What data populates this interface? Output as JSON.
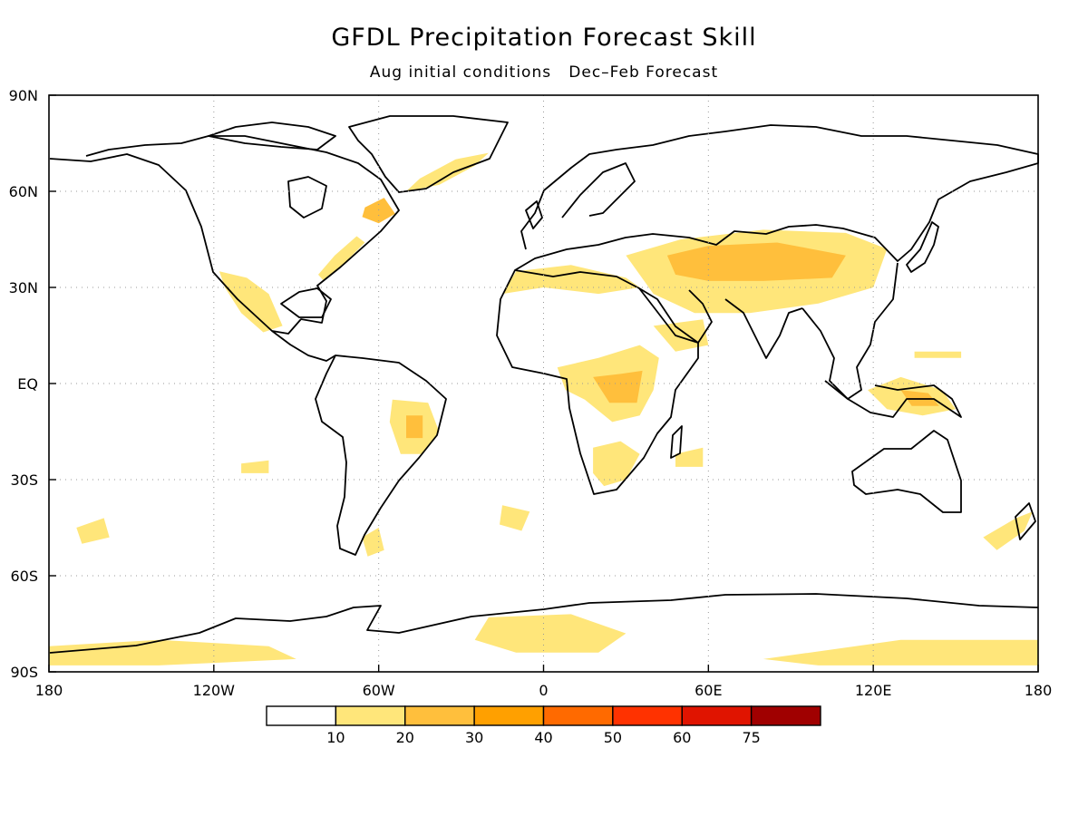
{
  "title": "GFDL Precipitation Forecast Skill",
  "subtitle": "Aug initial conditions   Dec–Feb Forecast",
  "map": {
    "projection": "equirectangular",
    "lon_range": [
      -180,
      180
    ],
    "lat_range": [
      -90,
      90
    ],
    "grid": "dotted",
    "coastline_color": "#000000",
    "lat_ticks": [
      {
        "value": 90,
        "label": "90N"
      },
      {
        "value": 60,
        "label": "60N"
      },
      {
        "value": 30,
        "label": "30N"
      },
      {
        "value": 0,
        "label": "EQ"
      },
      {
        "value": -30,
        "label": "30S"
      },
      {
        "value": -60,
        "label": "60S"
      },
      {
        "value": -90,
        "label": "90S"
      }
    ],
    "lon_ticks": [
      {
        "value": -180,
        "label": "180"
      },
      {
        "value": -120,
        "label": "120W"
      },
      {
        "value": -60,
        "label": "60W"
      },
      {
        "value": 0,
        "label": "0"
      },
      {
        "value": 60,
        "label": "60E"
      },
      {
        "value": 120,
        "label": "120E"
      },
      {
        "value": 180,
        "label": "180"
      }
    ]
  },
  "colorbar": {
    "bins": [
      {
        "color": "#ffffff"
      },
      {
        "color": "#ffe67a"
      },
      {
        "color": "#ffbf3c"
      },
      {
        "color": "#ffa000"
      },
      {
        "color": "#ff6a00"
      },
      {
        "color": "#ff3200"
      },
      {
        "color": "#e01400"
      },
      {
        "color": "#a00000"
      }
    ],
    "tick_labels": [
      "10",
      "20",
      "30",
      "40",
      "50",
      "60",
      "75"
    ]
  },
  "skill_regions": [
    {
      "name": "sahara-north-africa",
      "level": 1,
      "points": [
        [
          -10,
          35
        ],
        [
          10,
          37
        ],
        [
          30,
          33
        ],
        [
          35,
          30
        ],
        [
          20,
          28
        ],
        [
          0,
          30
        ],
        [
          -15,
          28
        ]
      ]
    },
    {
      "name": "middle-east-central-asia",
      "level": 1,
      "points": [
        [
          30,
          40
        ],
        [
          50,
          45
        ],
        [
          80,
          48
        ],
        [
          110,
          47
        ],
        [
          125,
          42
        ],
        [
          120,
          30
        ],
        [
          100,
          25
        ],
        [
          75,
          22
        ],
        [
          55,
          22
        ],
        [
          40,
          28
        ]
      ]
    },
    {
      "name": "central-asia-core",
      "level": 2,
      "points": [
        [
          45,
          40
        ],
        [
          60,
          43
        ],
        [
          85,
          44
        ],
        [
          110,
          40
        ],
        [
          105,
          33
        ],
        [
          80,
          32
        ],
        [
          60,
          32
        ],
        [
          48,
          34
        ]
      ]
    },
    {
      "name": "east-africa",
      "level": 1,
      "points": [
        [
          5,
          5
        ],
        [
          20,
          8
        ],
        [
          35,
          12
        ],
        [
          42,
          8
        ],
        [
          40,
          -2
        ],
        [
          35,
          -10
        ],
        [
          25,
          -12
        ],
        [
          15,
          -5
        ],
        [
          8,
          -2
        ]
      ]
    },
    {
      "name": "east-africa-core",
      "level": 2,
      "points": [
        [
          18,
          2
        ],
        [
          28,
          3
        ],
        [
          36,
          4
        ],
        [
          34,
          -6
        ],
        [
          24,
          -6
        ]
      ]
    },
    {
      "name": "southern-africa",
      "level": 1,
      "points": [
        [
          18,
          -20
        ],
        [
          28,
          -18
        ],
        [
          35,
          -22
        ],
        [
          30,
          -30
        ],
        [
          22,
          -32
        ],
        [
          18,
          -28
        ]
      ]
    },
    {
      "name": "mexico",
      "level": 1,
      "points": [
        [
          -118,
          35
        ],
        [
          -108,
          33
        ],
        [
          -100,
          28
        ],
        [
          -95,
          18
        ],
        [
          -102,
          16
        ],
        [
          -110,
          22
        ],
        [
          -116,
          30
        ]
      ]
    },
    {
      "name": "us-east-coast",
      "level": 1,
      "points": [
        [
          -80,
          32
        ],
        [
          -72,
          38
        ],
        [
          -65,
          44
        ],
        [
          -68,
          46
        ],
        [
          -76,
          40
        ],
        [
          -82,
          34
        ]
      ]
    },
    {
      "name": "greenland-east",
      "level": 1,
      "points": [
        [
          -50,
          60
        ],
        [
          -38,
          62
        ],
        [
          -25,
          68
        ],
        [
          -20,
          72
        ],
        [
          -32,
          70
        ],
        [
          -45,
          64
        ]
      ]
    },
    {
      "name": "labrador",
      "level": 2,
      "points": [
        [
          -65,
          55
        ],
        [
          -58,
          58
        ],
        [
          -54,
          53
        ],
        [
          -60,
          50
        ],
        [
          -66,
          52
        ]
      ]
    },
    {
      "name": "brazil",
      "level": 1,
      "points": [
        [
          -55,
          -5
        ],
        [
          -42,
          -6
        ],
        [
          -38,
          -15
        ],
        [
          -44,
          -22
        ],
        [
          -52,
          -22
        ],
        [
          -56,
          -12
        ]
      ]
    },
    {
      "name": "brazil-core",
      "level": 2,
      "points": [
        [
          -50,
          -10
        ],
        [
          -44,
          -10
        ],
        [
          -44,
          -17
        ],
        [
          -50,
          -17
        ]
      ]
    },
    {
      "name": "indonesia-png",
      "level": 1,
      "points": [
        [
          118,
          -2
        ],
        [
          130,
          2
        ],
        [
          145,
          -2
        ],
        [
          150,
          -8
        ],
        [
          138,
          -10
        ],
        [
          125,
          -8
        ]
      ]
    },
    {
      "name": "png-core",
      "level": 2,
      "points": [
        [
          130,
          -2
        ],
        [
          140,
          -3
        ],
        [
          144,
          -7
        ],
        [
          134,
          -7
        ]
      ]
    },
    {
      "name": "west-pacific",
      "level": 1,
      "points": [
        [
          135,
          8
        ],
        [
          152,
          8
        ],
        [
          152,
          10
        ],
        [
          135,
          10
        ]
      ]
    },
    {
      "name": "antarctica-west",
      "level": 1,
      "points": [
        [
          -180,
          -82
        ],
        [
          -140,
          -80
        ],
        [
          -100,
          -82
        ],
        [
          -90,
          -86
        ],
        [
          -140,
          -88
        ],
        [
          -180,
          -88
        ]
      ]
    },
    {
      "name": "antarctica-atlantic",
      "level": 1,
      "points": [
        [
          -20,
          -73
        ],
        [
          10,
          -72
        ],
        [
          30,
          -78
        ],
        [
          20,
          -84
        ],
        [
          -10,
          -84
        ],
        [
          -25,
          -80
        ]
      ]
    },
    {
      "name": "antarctica-east",
      "level": 1,
      "points": [
        [
          80,
          -86
        ],
        [
          130,
          -80
        ],
        [
          180,
          -80
        ],
        [
          180,
          -88
        ],
        [
          100,
          -88
        ]
      ]
    },
    {
      "name": "south-america-south",
      "level": 1,
      "points": [
        [
          -66,
          -48
        ],
        [
          -60,
          -45
        ],
        [
          -58,
          -52
        ],
        [
          -64,
          -54
        ]
      ]
    },
    {
      "name": "south-pacific-a",
      "level": 1,
      "points": [
        [
          -170,
          -45
        ],
        [
          -160,
          -42
        ],
        [
          -158,
          -48
        ],
        [
          -168,
          -50
        ]
      ]
    },
    {
      "name": "south-pacific-b",
      "level": 1,
      "points": [
        [
          -110,
          -25
        ],
        [
          -100,
          -24
        ],
        [
          -100,
          -28
        ],
        [
          -110,
          -28
        ]
      ]
    },
    {
      "name": "new-zealand-region",
      "level": 1,
      "points": [
        [
          160,
          -48
        ],
        [
          172,
          -42
        ],
        [
          178,
          -40
        ],
        [
          175,
          -46
        ],
        [
          165,
          -52
        ]
      ]
    },
    {
      "name": "arabian-sea",
      "level": 1,
      "points": [
        [
          40,
          18
        ],
        [
          58,
          20
        ],
        [
          60,
          12
        ],
        [
          48,
          10
        ]
      ]
    },
    {
      "name": "indian-ocean-south",
      "level": 1,
      "points": [
        [
          48,
          -22
        ],
        [
          58,
          -20
        ],
        [
          58,
          -26
        ],
        [
          48,
          -26
        ]
      ]
    },
    {
      "name": "south-atlantic",
      "level": 1,
      "points": [
        [
          -15,
          -38
        ],
        [
          -5,
          -40
        ],
        [
          -8,
          -46
        ],
        [
          -16,
          -44
        ]
      ]
    }
  ]
}
